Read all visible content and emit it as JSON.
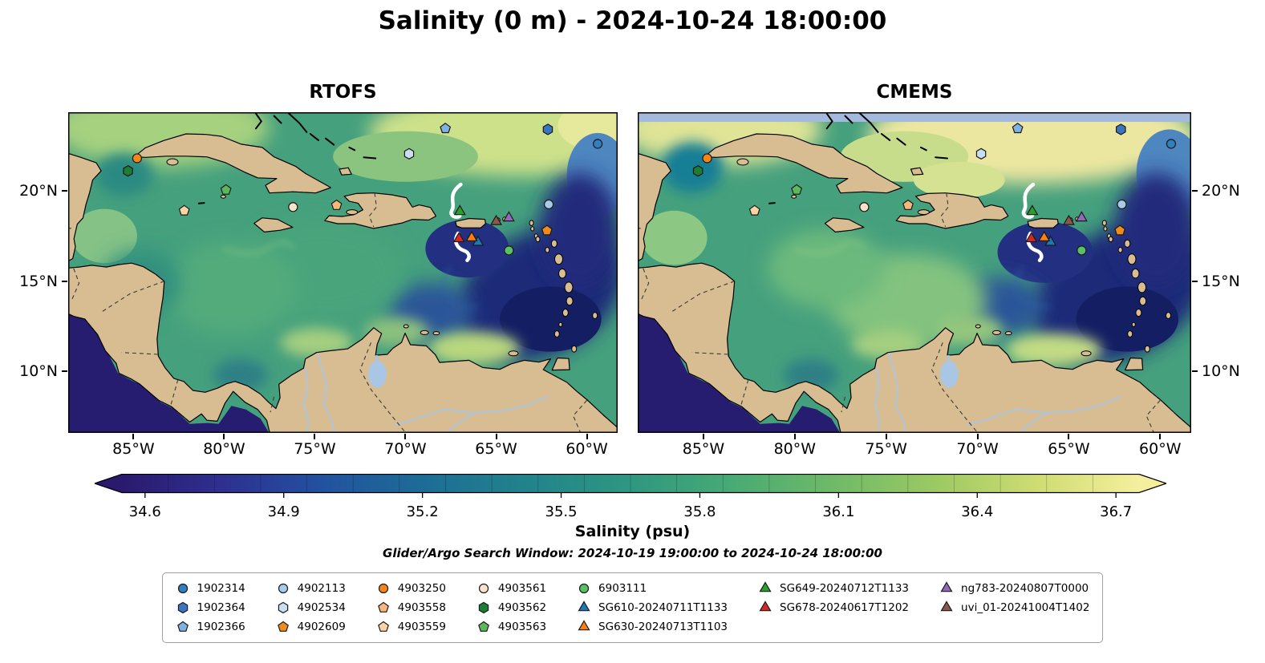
{
  "figure": {
    "title": "Salinity (0 m) - 2024-10-24 18:00:00",
    "search_window": "Glider/Argo Search Window: 2024-10-19 19:00:00 to 2024-10-24 18:00:00"
  },
  "panels": [
    {
      "title": "RTOFS"
    },
    {
      "title": "CMEMS"
    }
  ],
  "axes": {
    "lon_ticks": [
      {
        "label": "85°W",
        "lon": -85
      },
      {
        "label": "80°W",
        "lon": -80
      },
      {
        "label": "75°W",
        "lon": -75
      },
      {
        "label": "70°W",
        "lon": -70
      },
      {
        "label": "65°W",
        "lon": -65
      },
      {
        "label": "60°W",
        "lon": -60
      }
    ],
    "lat_ticks": [
      {
        "label": "20°N",
        "lat": 20
      },
      {
        "label": "15°N",
        "lat": 15
      },
      {
        "label": "10°N",
        "lat": 10
      }
    ]
  },
  "colorbar": {
    "label": "Salinity (psu)",
    "vmin": 34.55,
    "vmax": 36.75,
    "ticks": [
      {
        "label": "34.6",
        "value": 34.6
      },
      {
        "label": "34.9",
        "value": 34.9
      },
      {
        "label": "35.2",
        "value": 35.2
      },
      {
        "label": "35.5",
        "value": 35.5
      },
      {
        "label": "35.8",
        "value": 35.8
      },
      {
        "label": "36.1",
        "value": 36.1
      },
      {
        "label": "36.4",
        "value": 36.4
      },
      {
        "label": "36.7",
        "value": 36.7
      }
    ],
    "stops": [
      "#2a1a6e",
      "#2e3090",
      "#22539f",
      "#1d6d96",
      "#22838b",
      "#2f9781",
      "#48aa74",
      "#6fba68",
      "#9cc963",
      "#cfdc73",
      "#f5ef9d"
    ]
  },
  "chart_data": {
    "type": "heatmap",
    "title": "Salinity (0 m) - 2024-10-24 18:00:00",
    "panels": [
      "RTOFS",
      "CMEMS"
    ],
    "variable": "Salinity (psu)",
    "colormap_range": [
      34.55,
      36.75
    ],
    "colorbar_ticks": [
      34.6,
      34.9,
      35.2,
      35.5,
      35.8,
      36.1,
      36.4,
      36.7
    ],
    "lon_range": [
      -88.6,
      -58.3
    ],
    "lat_range": [
      6.6,
      24.35
    ],
    "lon_ticks_deg": [
      -85,
      -80,
      -75,
      -70,
      -65,
      -60
    ],
    "lat_ticks_deg": [
      20,
      15,
      10
    ],
    "land_color": "#d7bd91",
    "platforms": [
      {
        "id": "1902314",
        "marker": "circle",
        "color": "#2f7fc1",
        "lon": -59.4,
        "lat": 22.6
      },
      {
        "id": "1902364",
        "marker": "hexagon",
        "color": "#3a75c0",
        "lon": -62.15,
        "lat": 23.4
      },
      {
        "id": "1902366",
        "marker": "pentagon",
        "color": "#7fb2e0",
        "lon": -67.8,
        "lat": 23.45
      },
      {
        "id": "4902113",
        "marker": "circle",
        "color": "#a8cbe8",
        "lon": -62.1,
        "lat": 19.25
      },
      {
        "id": "4902534",
        "marker": "hexagon",
        "color": "#c9def1",
        "lon": -69.8,
        "lat": 22.05
      },
      {
        "id": "4902609",
        "marker": "pentagon",
        "color": "#f08c1d",
        "lon": -62.2,
        "lat": 17.8
      },
      {
        "id": "4903250",
        "marker": "circle",
        "color": "#f58518",
        "lon": -84.8,
        "lat": 21.8
      },
      {
        "id": "4903558",
        "marker": "pentagon",
        "color": "#f7b77c",
        "lon": -73.8,
        "lat": 19.2
      },
      {
        "id": "4903559",
        "marker": "pentagon",
        "color": "#fbd4a4",
        "lon": -82.2,
        "lat": 18.9
      },
      {
        "id": "4903561",
        "marker": "circle",
        "color": "#fbe3c9",
        "lon": -76.2,
        "lat": 19.1
      },
      {
        "id": "4903562",
        "marker": "hexagon",
        "color": "#1e7d34",
        "lon": -85.3,
        "lat": 21.1
      },
      {
        "id": "4903563",
        "marker": "pentagon",
        "color": "#5cb85c",
        "lon": -79.9,
        "lat": 20.05
      },
      {
        "id": "6903111",
        "marker": "circle",
        "color": "#58c065",
        "lon": -64.3,
        "lat": 16.7
      },
      {
        "id": "SG610-20240711T1133",
        "marker": "triangle",
        "color": "#1f77b4",
        "lon": -66.0,
        "lat": 17.15
      },
      {
        "id": "SG630-20240713T1103",
        "marker": "triangle",
        "color": "#ff7f0e",
        "lon": -66.35,
        "lat": 17.4
      },
      {
        "id": "SG649-20240712T1133",
        "marker": "triangle",
        "color": "#2ca02c",
        "lon": -67.0,
        "lat": 18.85
      },
      {
        "id": "SG678-20240617T1202",
        "marker": "triangle",
        "color": "#d62728",
        "lon": -67.05,
        "lat": 17.35
      },
      {
        "id": "ng783-20240807T0000",
        "marker": "triangle",
        "color": "#9467bd",
        "lon": -64.3,
        "lat": 18.5
      },
      {
        "id": "uvi_01-20241004T1402",
        "marker": "triangle",
        "color": "#8c564b",
        "lon": -65.0,
        "lat": 18.3
      }
    ]
  },
  "legend": {
    "columns": [
      [
        "1902314",
        "1902364",
        "1902366"
      ],
      [
        "4902113",
        "4902534",
        "4902609"
      ],
      [
        "4903250",
        "4903558",
        "4903559"
      ],
      [
        "4903561",
        "4903562",
        "4903563"
      ],
      [
        "6903111",
        "SG610-20240711T1133",
        "SG630-20240713T1103"
      ],
      [
        "SG649-20240712T1133",
        "SG678-20240617T1202"
      ],
      [
        "ng783-20240807T0000",
        "uvi_01-20241004T1402"
      ]
    ]
  }
}
